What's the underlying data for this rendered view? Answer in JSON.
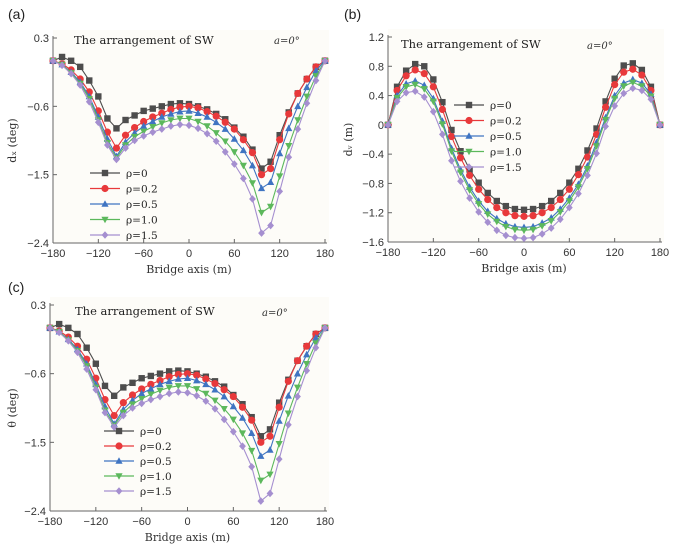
{
  "chart_data": [
    {
      "id": "a",
      "panel_label": "(a)",
      "type": "line",
      "title": "The arrangement of SW",
      "annotation": "a=0°",
      "xlabel": "Bridge axis (m)",
      "ylabel": "dₓ (deg)",
      "xlim": [
        -180,
        180
      ],
      "ylim": [
        -2.4,
        0.3
      ],
      "xticks": [
        -180,
        -120,
        -60,
        0,
        60,
        120,
        180
      ],
      "xtick_labels": [
        "-180",
        "-120",
        "-60",
        "0",
        "60",
        "120",
        "180"
      ],
      "yticks": [
        0.3,
        -0.6,
        -1.5,
        -2.4
      ],
      "ytick_labels": [
        "0.3",
        "-0.6",
        "-1.5",
        "-2.4"
      ],
      "legend_position": "lower-center",
      "x": [
        -180,
        -168,
        -156,
        -144,
        -132,
        -120,
        -108,
        -96,
        -84,
        -72,
        -60,
        -48,
        -36,
        -24,
        -12,
        0,
        12,
        24,
        36,
        48,
        60,
        72,
        84,
        96,
        108,
        120,
        132,
        144,
        156,
        168,
        180
      ],
      "series": [
        {
          "name": "ρ=0",
          "color": "#4d4d4d",
          "marker": "square",
          "values": [
            0.0,
            0.05,
            0.0,
            -0.08,
            -0.26,
            -0.47,
            -0.76,
            -0.89,
            -0.78,
            -0.72,
            -0.66,
            -0.63,
            -0.6,
            -0.57,
            -0.56,
            -0.57,
            -0.6,
            -0.64,
            -0.7,
            -0.77,
            -0.88,
            -1.0,
            -1.17,
            -1.42,
            -1.33,
            -0.98,
            -0.68,
            -0.43,
            -0.24,
            -0.08,
            0.0
          ]
        },
        {
          "name": "ρ=0.2",
          "color": "#e8393b",
          "marker": "circle",
          "values": [
            0.0,
            -0.04,
            -0.12,
            -0.24,
            -0.41,
            -0.66,
            -0.94,
            -1.15,
            -0.98,
            -0.88,
            -0.8,
            -0.74,
            -0.69,
            -0.64,
            -0.61,
            -0.6,
            -0.62,
            -0.67,
            -0.73,
            -0.81,
            -0.9,
            -1.04,
            -1.21,
            -1.5,
            -1.42,
            -1.04,
            -0.7,
            -0.43,
            -0.24,
            -0.08,
            0.0
          ]
        },
        {
          "name": "ρ=0.5",
          "color": "#3f74c2",
          "marker": "triangle-up",
          "values": [
            0.0,
            -0.05,
            -0.15,
            -0.28,
            -0.47,
            -0.74,
            -1.03,
            -1.26,
            -1.07,
            -0.95,
            -0.86,
            -0.8,
            -0.74,
            -0.7,
            -0.67,
            -0.66,
            -0.69,
            -0.74,
            -0.81,
            -0.9,
            -1.03,
            -1.18,
            -1.38,
            -1.68,
            -1.6,
            -1.22,
            -0.89,
            -0.6,
            -0.35,
            -0.13,
            0.0
          ]
        },
        {
          "name": "ρ=1.0",
          "color": "#5cb85c",
          "marker": "triangle-down",
          "values": [
            0.0,
            -0.05,
            -0.16,
            -0.3,
            -0.5,
            -0.78,
            -1.08,
            -1.28,
            -1.11,
            -1.0,
            -0.93,
            -0.87,
            -0.82,
            -0.78,
            -0.76,
            -0.76,
            -0.8,
            -0.86,
            -0.95,
            -1.06,
            -1.2,
            -1.38,
            -1.61,
            -2.0,
            -1.92,
            -1.52,
            -1.12,
            -0.78,
            -0.47,
            -0.2,
            0.0
          ]
        },
        {
          "name": "ρ=1.5",
          "color": "#a58fd0",
          "marker": "diamond",
          "values": [
            0.0,
            -0.06,
            -0.17,
            -0.32,
            -0.54,
            -0.81,
            -1.11,
            -1.3,
            -1.15,
            -1.05,
            -0.99,
            -0.94,
            -0.9,
            -0.86,
            -0.84,
            -0.85,
            -0.89,
            -0.96,
            -1.06,
            -1.2,
            -1.36,
            -1.55,
            -1.82,
            -2.27,
            -2.17,
            -1.72,
            -1.27,
            -0.9,
            -0.56,
            -0.26,
            0.0
          ]
        }
      ]
    },
    {
      "id": "b",
      "panel_label": "(b)",
      "type": "line",
      "title": "The arrangement of SW",
      "annotation": "a=0°",
      "xlabel": "Bridge axis (m)",
      "ylabel": "dᵥ (m)",
      "xlim": [
        -180,
        180
      ],
      "ylim": [
        -1.6,
        1.2
      ],
      "xticks": [
        -180,
        -120,
        -60,
        0,
        60,
        120,
        180
      ],
      "xtick_labels": [
        "-180",
        "-120",
        "-60",
        "0",
        "60",
        "120",
        "180"
      ],
      "yticks": [
        1.2,
        0.8,
        0.4,
        0,
        -0.4,
        -0.8,
        -1.2,
        -1.6
      ],
      "ytick_labels": [
        "1.2",
        "0.8",
        "0.4",
        "0",
        "-0.4",
        "-0.8",
        "-1.2",
        "-1.6"
      ],
      "legend_position": "center",
      "x": [
        -180,
        -168,
        -156,
        -144,
        -132,
        -120,
        -108,
        -96,
        -84,
        -72,
        -60,
        -48,
        -36,
        -24,
        -12,
        0,
        12,
        24,
        36,
        48,
        60,
        72,
        84,
        96,
        108,
        120,
        132,
        144,
        156,
        168,
        180
      ],
      "series": [
        {
          "name": "ρ=0",
          "color": "#4d4d4d",
          "marker": "square",
          "values": [
            0.0,
            0.52,
            0.74,
            0.83,
            0.8,
            0.62,
            0.31,
            -0.07,
            -0.36,
            -0.61,
            -0.79,
            -0.93,
            -1.04,
            -1.11,
            -1.15,
            -1.16,
            -1.15,
            -1.11,
            -1.04,
            -0.93,
            -0.79,
            -0.6,
            -0.35,
            -0.05,
            0.32,
            0.63,
            0.81,
            0.84,
            0.75,
            0.52,
            0.0
          ]
        },
        {
          "name": "ρ=0.2",
          "color": "#e8393b",
          "marker": "circle",
          "values": [
            0.0,
            0.47,
            0.67,
            0.75,
            0.7,
            0.52,
            0.21,
            -0.16,
            -0.45,
            -0.69,
            -0.88,
            -1.02,
            -1.13,
            -1.2,
            -1.24,
            -1.25,
            -1.24,
            -1.2,
            -1.13,
            -1.02,
            -0.88,
            -0.68,
            -0.44,
            -0.13,
            0.24,
            0.55,
            0.72,
            0.76,
            0.68,
            0.47,
            0.0
          ]
        },
        {
          "name": "ρ=0.5",
          "color": "#3f74c2",
          "marker": "triangle-up",
          "values": [
            0.0,
            0.4,
            0.56,
            0.6,
            0.54,
            0.36,
            0.05,
            -0.32,
            -0.61,
            -0.85,
            -1.04,
            -1.18,
            -1.28,
            -1.35,
            -1.39,
            -1.4,
            -1.39,
            -1.34,
            -1.27,
            -1.15,
            -1.0,
            -0.81,
            -0.56,
            -0.24,
            0.1,
            0.4,
            0.57,
            0.62,
            0.57,
            0.42,
            0.0
          ]
        },
        {
          "name": "ρ=1.0",
          "color": "#5cb85c",
          "marker": "triangle-down",
          "values": [
            0.0,
            0.37,
            0.52,
            0.55,
            0.49,
            0.32,
            0.01,
            -0.36,
            -0.65,
            -0.89,
            -1.08,
            -1.22,
            -1.32,
            -1.39,
            -1.43,
            -1.44,
            -1.43,
            -1.38,
            -1.31,
            -1.19,
            -1.04,
            -0.85,
            -0.6,
            -0.29,
            0.07,
            0.36,
            0.53,
            0.58,
            0.53,
            0.39,
            0.0
          ]
        },
        {
          "name": "ρ=1.5",
          "color": "#a58fd0",
          "marker": "diamond",
          "values": [
            0.0,
            0.32,
            0.44,
            0.46,
            0.38,
            0.18,
            -0.13,
            -0.49,
            -0.77,
            -1.0,
            -1.19,
            -1.33,
            -1.44,
            -1.51,
            -1.54,
            -1.55,
            -1.54,
            -1.49,
            -1.41,
            -1.29,
            -1.13,
            -0.94,
            -0.69,
            -0.39,
            -0.02,
            0.26,
            0.43,
            0.5,
            0.47,
            0.35,
            0.0
          ]
        }
      ]
    },
    {
      "id": "c",
      "panel_label": "(c)",
      "type": "line",
      "title": "The arrangement of SW",
      "annotation": "a=0°",
      "xlabel": "Bridge axis (m)",
      "ylabel": "θ (deg)",
      "xlim": [
        -180,
        180
      ],
      "ylim": [
        -2.4,
        0.3
      ],
      "xticks": [
        -180,
        -120,
        -60,
        0,
        60,
        120,
        180
      ],
      "xtick_labels": [
        "-180",
        "-120",
        "-60",
        "0",
        "60",
        "120",
        "180"
      ],
      "yticks": [
        0.3,
        -0.6,
        -1.5,
        -2.4
      ],
      "ytick_labels": [
        "0.3",
        "-0.6",
        "-1.5",
        "-2.4"
      ],
      "legend_position": "lower-center",
      "x": [
        -180,
        -168,
        -156,
        -144,
        -132,
        -120,
        -108,
        -96,
        -84,
        -72,
        -60,
        -48,
        -36,
        -24,
        -12,
        0,
        12,
        24,
        36,
        48,
        60,
        72,
        84,
        96,
        108,
        120,
        132,
        144,
        156,
        168,
        180
      ],
      "series": [
        {
          "name": "ρ=0",
          "color": "#4d4d4d",
          "marker": "square",
          "values": [
            0.0,
            0.05,
            0.0,
            -0.08,
            -0.26,
            -0.47,
            -0.76,
            -0.89,
            -0.78,
            -0.72,
            -0.66,
            -0.63,
            -0.6,
            -0.57,
            -0.56,
            -0.57,
            -0.6,
            -0.64,
            -0.7,
            -0.77,
            -0.88,
            -1.0,
            -1.17,
            -1.42,
            -1.33,
            -0.98,
            -0.68,
            -0.43,
            -0.24,
            -0.08,
            0.0
          ]
        },
        {
          "name": "ρ=0.2",
          "color": "#e8393b",
          "marker": "circle",
          "values": [
            0.0,
            -0.04,
            -0.12,
            -0.24,
            -0.41,
            -0.66,
            -0.94,
            -1.15,
            -0.98,
            -0.88,
            -0.8,
            -0.74,
            -0.69,
            -0.64,
            -0.61,
            -0.6,
            -0.62,
            -0.67,
            -0.73,
            -0.81,
            -0.9,
            -1.04,
            -1.21,
            -1.5,
            -1.42,
            -1.04,
            -0.7,
            -0.43,
            -0.24,
            -0.08,
            0.0
          ]
        },
        {
          "name": "ρ=0.5",
          "color": "#3f74c2",
          "marker": "triangle-up",
          "values": [
            0.0,
            -0.05,
            -0.15,
            -0.28,
            -0.47,
            -0.74,
            -1.03,
            -1.26,
            -1.07,
            -0.95,
            -0.86,
            -0.8,
            -0.74,
            -0.7,
            -0.67,
            -0.66,
            -0.69,
            -0.74,
            -0.81,
            -0.9,
            -1.03,
            -1.18,
            -1.38,
            -1.68,
            -1.6,
            -1.22,
            -0.89,
            -0.6,
            -0.35,
            -0.13,
            0.0
          ]
        },
        {
          "name": "ρ=1.0",
          "color": "#5cb85c",
          "marker": "triangle-down",
          "values": [
            0.0,
            -0.05,
            -0.16,
            -0.3,
            -0.5,
            -0.78,
            -1.08,
            -1.28,
            -1.11,
            -1.0,
            -0.93,
            -0.87,
            -0.82,
            -0.78,
            -0.76,
            -0.76,
            -0.8,
            -0.86,
            -0.95,
            -1.06,
            -1.2,
            -1.38,
            -1.61,
            -2.0,
            -1.92,
            -1.52,
            -1.12,
            -0.78,
            -0.47,
            -0.2,
            0.0
          ]
        },
        {
          "name": "ρ=1.5",
          "color": "#a58fd0",
          "marker": "diamond",
          "values": [
            0.0,
            -0.06,
            -0.17,
            -0.32,
            -0.54,
            -0.81,
            -1.11,
            -1.3,
            -1.15,
            -1.05,
            -0.99,
            -0.94,
            -0.9,
            -0.86,
            -0.84,
            -0.85,
            -0.89,
            -0.96,
            -1.06,
            -1.2,
            -1.36,
            -1.55,
            -1.82,
            -2.27,
            -2.17,
            -1.72,
            -1.27,
            -0.9,
            -0.56,
            -0.26,
            0.0
          ]
        }
      ]
    }
  ]
}
